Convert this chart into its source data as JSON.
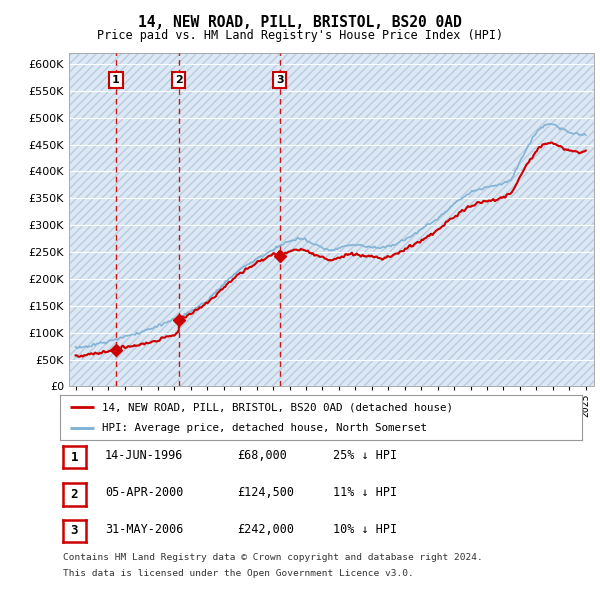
{
  "title": "14, NEW ROAD, PILL, BRISTOL, BS20 0AD",
  "subtitle": "Price paid vs. HM Land Registry's House Price Index (HPI)",
  "legend_line1": "14, NEW ROAD, PILL, BRISTOL, BS20 0AD (detached house)",
  "legend_line2": "HPI: Average price, detached house, North Somerset",
  "footer1": "Contains HM Land Registry data © Crown copyright and database right 2024.",
  "footer2": "This data is licensed under the Open Government Licence v3.0.",
  "sales": [
    {
      "num": 1,
      "date_label": "14-JUN-1996",
      "date_x": 1996.45,
      "price": 68000,
      "hpi_text": "25% ↓ HPI"
    },
    {
      "num": 2,
      "date_label": "05-APR-2000",
      "date_x": 2000.27,
      "price": 124500,
      "hpi_text": "11% ↓ HPI"
    },
    {
      "num": 3,
      "date_label": "31-MAY-2006",
      "date_x": 2006.41,
      "price": 242000,
      "hpi_text": "10% ↓ HPI"
    }
  ],
  "hpi_color": "#7bafd4",
  "price_color": "#cc0000",
  "vline_color": "#cc0000",
  "ylim": [
    0,
    620000
  ],
  "xlim_start": 1993.6,
  "xlim_end": 2025.5,
  "hpi_years": [
    1994,
    1994.5,
    1995,
    1995.5,
    1996,
    1996.5,
    1997,
    1997.5,
    1998,
    1998.5,
    1999,
    1999.5,
    2000,
    2000.5,
    2001,
    2001.5,
    2002,
    2002.5,
    2003,
    2003.5,
    2004,
    2004.5,
    2005,
    2005.5,
    2006,
    2006.5,
    2007,
    2007.5,
    2008,
    2008.5,
    2009,
    2009.5,
    2010,
    2010.5,
    2011,
    2011.5,
    2012,
    2012.5,
    2013,
    2013.5,
    2014,
    2014.5,
    2015,
    2015.5,
    2016,
    2016.5,
    2017,
    2017.5,
    2018,
    2018.5,
    2019,
    2019.5,
    2020,
    2020.5,
    2021,
    2021.5,
    2022,
    2022.5,
    2023,
    2023.5,
    2024,
    2024.5,
    2025
  ],
  "hpi_vals": [
    72000,
    74000,
    77000,
    80000,
    84000,
    88000,
    93000,
    97000,
    101000,
    106000,
    111000,
    118000,
    125000,
    132000,
    140000,
    150000,
    160000,
    175000,
    190000,
    205000,
    218000,
    228000,
    237000,
    246000,
    254000,
    262000,
    270000,
    275000,
    272000,
    265000,
    258000,
    253000,
    257000,
    263000,
    264000,
    261000,
    259000,
    257000,
    260000,
    265000,
    273000,
    282000,
    292000,
    302000,
    313000,
    326000,
    340000,
    352000,
    361000,
    367000,
    371000,
    374000,
    377000,
    388000,
    418000,
    448000,
    472000,
    488000,
    488000,
    480000,
    472000,
    468000,
    470000
  ]
}
